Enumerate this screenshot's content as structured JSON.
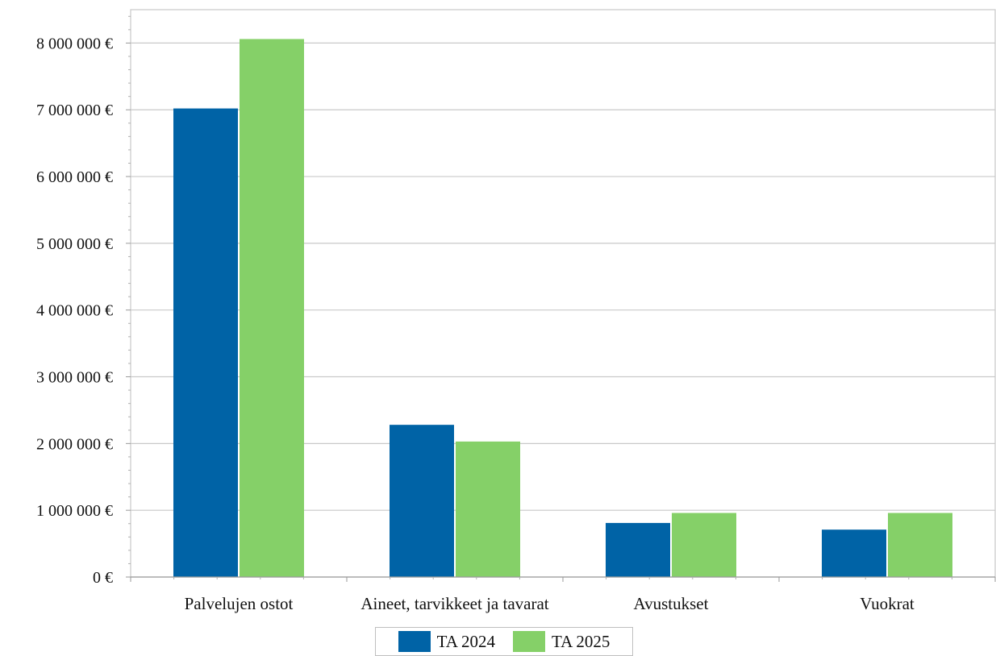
{
  "chart_data": {
    "type": "bar",
    "title": "",
    "xlabel": "",
    "ylabel": "",
    "categories": [
      "Palvelujen ostot",
      "Aineet, tarvikkeet ja tavarat",
      "Avustukset",
      "Vuokrat"
    ],
    "series": [
      {
        "name": "TA 2024",
        "color": "#0063a6",
        "values": [
          7020000,
          2280000,
          810000,
          710000
        ]
      },
      {
        "name": "TA 2025",
        "color": "#85d068",
        "values": [
          8060000,
          2030000,
          960000,
          960000
        ]
      }
    ],
    "ylim": [
      0,
      8500000
    ],
    "yticks": [
      0,
      1000000,
      2000000,
      3000000,
      4000000,
      5000000,
      6000000,
      7000000,
      8000000
    ],
    "ytick_labels": [
      "0 €",
      "1 000 000 €",
      "2 000 000 €",
      "3 000 000 €",
      "4 000 000 €",
      "5 000 000 €",
      "6 000 000 €",
      "7 000 000 €",
      "8 000 000 €"
    ],
    "grid": true,
    "legend": "bottom"
  }
}
